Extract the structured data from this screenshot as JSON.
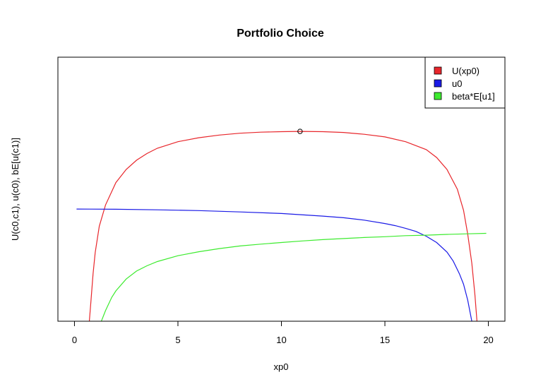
{
  "chart_data": {
    "type": "line",
    "title": "Portfolio Choice",
    "xlabel": "xp0",
    "ylabel": "U(c0,c1), u(c0), bE[u(c1)]",
    "xlim": [
      -0.8,
      20.8
    ],
    "ylim": [
      0,
      1
    ],
    "x_ticks": [
      0,
      5,
      10,
      15,
      20
    ],
    "y_axis_ticks_shown": false,
    "grid": false,
    "legend_position": "top-right",
    "series": [
      {
        "name": "U(xp0)",
        "color": "#E8262B",
        "points": [
          [
            0.72,
            0
          ],
          [
            0.8,
            0.08
          ],
          [
            0.9,
            0.18
          ],
          [
            1.0,
            0.26
          ],
          [
            1.2,
            0.36
          ],
          [
            1.5,
            0.44
          ],
          [
            2.0,
            0.525
          ],
          [
            2.5,
            0.575
          ],
          [
            3.0,
            0.61
          ],
          [
            3.5,
            0.635
          ],
          [
            4.0,
            0.655
          ],
          [
            5.0,
            0.68
          ],
          [
            6.0,
            0.695
          ],
          [
            7.0,
            0.705
          ],
          [
            8.0,
            0.712
          ],
          [
            9.0,
            0.716
          ],
          [
            10.0,
            0.718
          ],
          [
            10.9,
            0.719
          ],
          [
            12.0,
            0.718
          ],
          [
            13.0,
            0.715
          ],
          [
            14.0,
            0.708
          ],
          [
            15.0,
            0.698
          ],
          [
            16.0,
            0.68
          ],
          [
            17.0,
            0.65
          ],
          [
            17.5,
            0.62
          ],
          [
            18.0,
            0.575
          ],
          [
            18.5,
            0.5
          ],
          [
            18.8,
            0.42
          ],
          [
            19.0,
            0.33
          ],
          [
            19.2,
            0.22
          ],
          [
            19.35,
            0.1
          ],
          [
            19.45,
            0
          ]
        ]
      },
      {
        "name": "u0",
        "color": "#1A1AE6",
        "points": [
          [
            0.1,
            0.425
          ],
          [
            2.0,
            0.424
          ],
          [
            4.0,
            0.422
          ],
          [
            6.0,
            0.419
          ],
          [
            8.0,
            0.414
          ],
          [
            10.0,
            0.408
          ],
          [
            12.0,
            0.398
          ],
          [
            13.0,
            0.392
          ],
          [
            14.0,
            0.383
          ],
          [
            15.0,
            0.37
          ],
          [
            15.5,
            0.362
          ],
          [
            16.0,
            0.352
          ],
          [
            16.5,
            0.34
          ],
          [
            17.0,
            0.322
          ],
          [
            17.5,
            0.298
          ],
          [
            18.0,
            0.262
          ],
          [
            18.3,
            0.228
          ],
          [
            18.6,
            0.18
          ],
          [
            18.8,
            0.14
          ],
          [
            19.0,
            0.08
          ],
          [
            19.1,
            0.04
          ],
          [
            19.2,
            0
          ]
        ]
      },
      {
        "name": "beta*E[u1]",
        "color": "#3DEB2F",
        "points": [
          [
            1.3,
            0
          ],
          [
            1.5,
            0.04
          ],
          [
            1.8,
            0.09
          ],
          [
            2.0,
            0.115
          ],
          [
            2.5,
            0.16
          ],
          [
            3.0,
            0.19
          ],
          [
            3.5,
            0.21
          ],
          [
            4.0,
            0.226
          ],
          [
            5.0,
            0.248
          ],
          [
            6.0,
            0.263
          ],
          [
            7.0,
            0.275
          ],
          [
            8.0,
            0.285
          ],
          [
            9.0,
            0.292
          ],
          [
            10.0,
            0.298
          ],
          [
            11.0,
            0.304
          ],
          [
            12.0,
            0.309
          ],
          [
            13.0,
            0.313
          ],
          [
            14.0,
            0.317
          ],
          [
            15.0,
            0.32
          ],
          [
            16.0,
            0.324
          ],
          [
            17.0,
            0.326
          ],
          [
            18.0,
            0.329
          ],
          [
            19.0,
            0.331
          ],
          [
            19.9,
            0.333
          ]
        ]
      }
    ],
    "annotations": [
      {
        "type": "open-circle",
        "x": 10.9,
        "y": 0.719,
        "color": "#000000"
      }
    ]
  }
}
